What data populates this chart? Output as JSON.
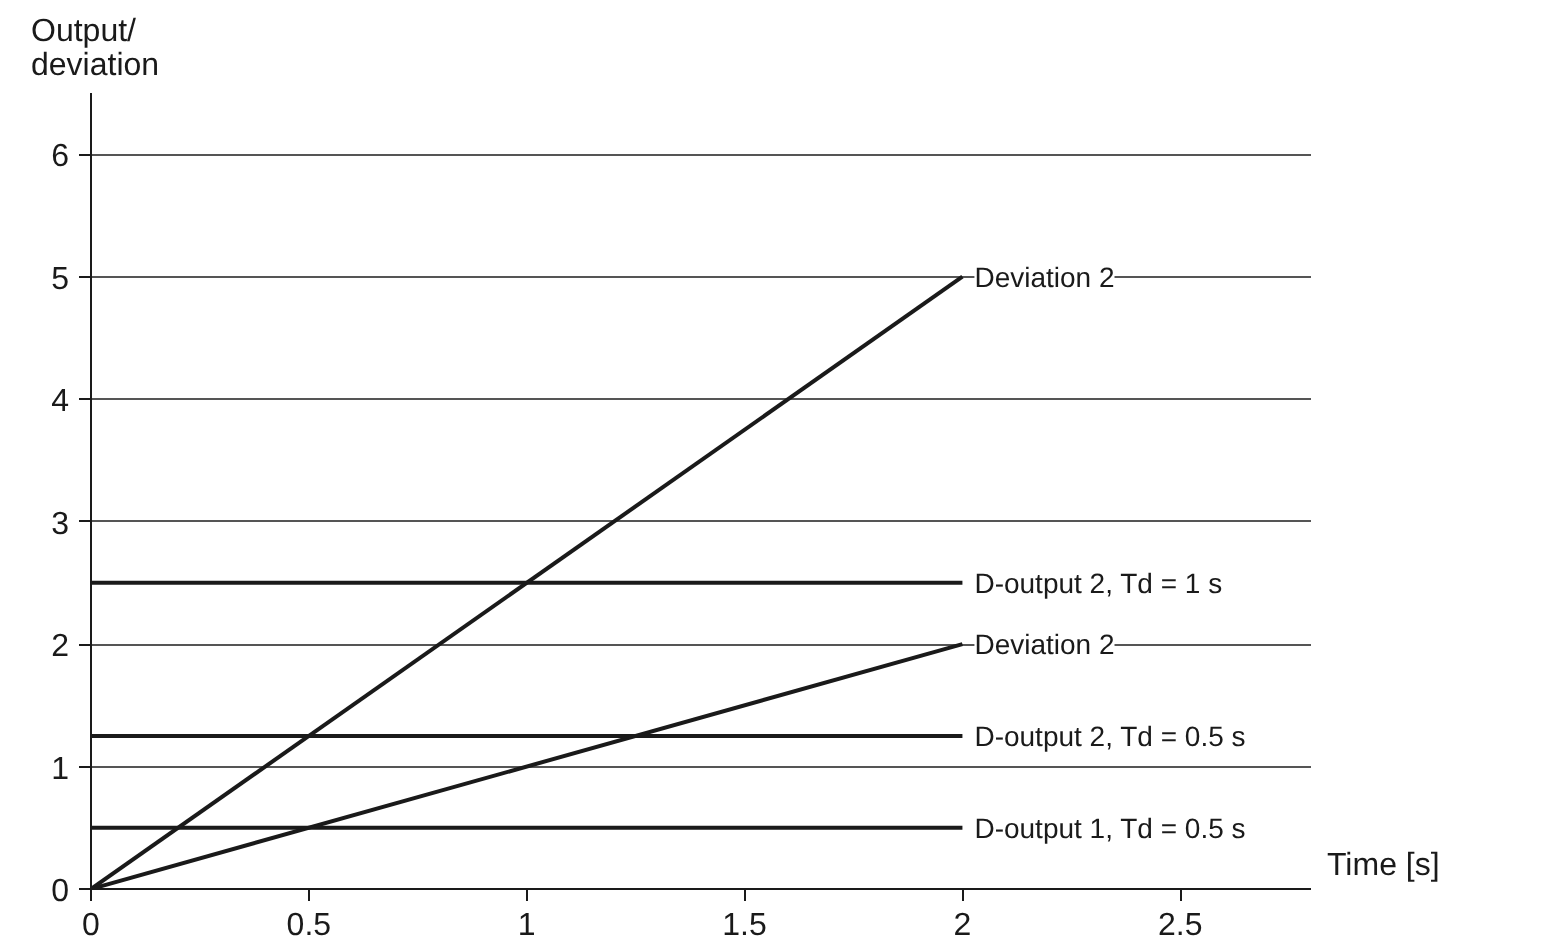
{
  "chart_data": {
    "type": "line",
    "ylabel": "Output/\ndeviation",
    "xlabel": "Time [s]",
    "xlim": [
      0,
      2.8
    ],
    "ylim": [
      0,
      6.5
    ],
    "xticks": [
      0,
      0.5,
      1,
      1.5,
      2,
      2.5
    ],
    "yticks": [
      0,
      1,
      2,
      3,
      4,
      5,
      6
    ],
    "grid": "y",
    "marker": "none",
    "line_style": "solid",
    "x": [
      0,
      2
    ],
    "series": [
      {
        "name": "Deviation 2",
        "color": "#1a1a1a",
        "values": [
          0,
          5
        ]
      },
      {
        "name": "D-output 2, Td = 1 s",
        "color": "#1a1a1a",
        "values": [
          2.5,
          2.5
        ]
      },
      {
        "name": "Deviation 2",
        "color": "#1a1a1a",
        "values": [
          0,
          2
        ]
      },
      {
        "name": "D-output 2, Td = 0.5 s",
        "color": "#1a1a1a",
        "values": [
          1.25,
          1.25
        ]
      },
      {
        "name": "D-output 1, Td = 0.5 s",
        "color": "#1a1a1a",
        "values": [
          0.5,
          0.5
        ]
      }
    ]
  }
}
